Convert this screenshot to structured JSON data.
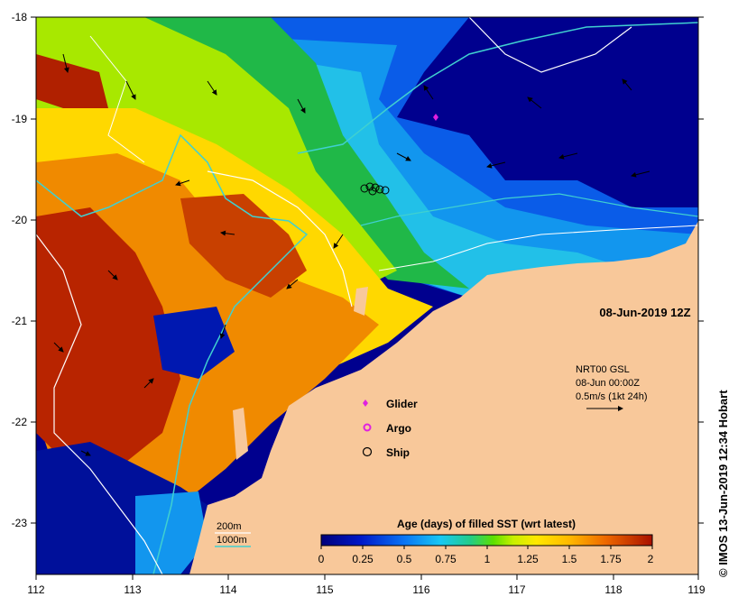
{
  "map": {
    "date_label": "08-Jun-2019 12Z",
    "credit": "© IMOS 13-Jun-2019 12:34 Hobart",
    "x_ticks": [
      "112",
      "113",
      "114",
      "115",
      "116",
      "117",
      "118",
      "119"
    ],
    "y_ticks": [
      "-18",
      "-19",
      "-20",
      "-21",
      "-22",
      "-23"
    ],
    "current_legend": {
      "line1": "NRT00 GSL",
      "line2": "08-Jun 00:00Z",
      "line3": "0.5m/s (1kt 24h)"
    },
    "obs_legend": {
      "glider": "Glider",
      "argo": "Argo",
      "ship": "Ship"
    },
    "bathy_legend": {
      "iso200": "200m",
      "iso1000": "1000m"
    },
    "colorbar": {
      "title": "Age (days) of filled SST (wrt latest)",
      "ticks": [
        "0",
        "0.25",
        "0.5",
        "0.75",
        "1",
        "1.25",
        "1.5",
        "1.75",
        "2"
      ]
    },
    "colors": {
      "land": "#f8c89a",
      "iso200": "#ffffff",
      "iso1000": "#40d0d0",
      "glider": "#e020e0",
      "argo": "#e020e0"
    }
  }
}
